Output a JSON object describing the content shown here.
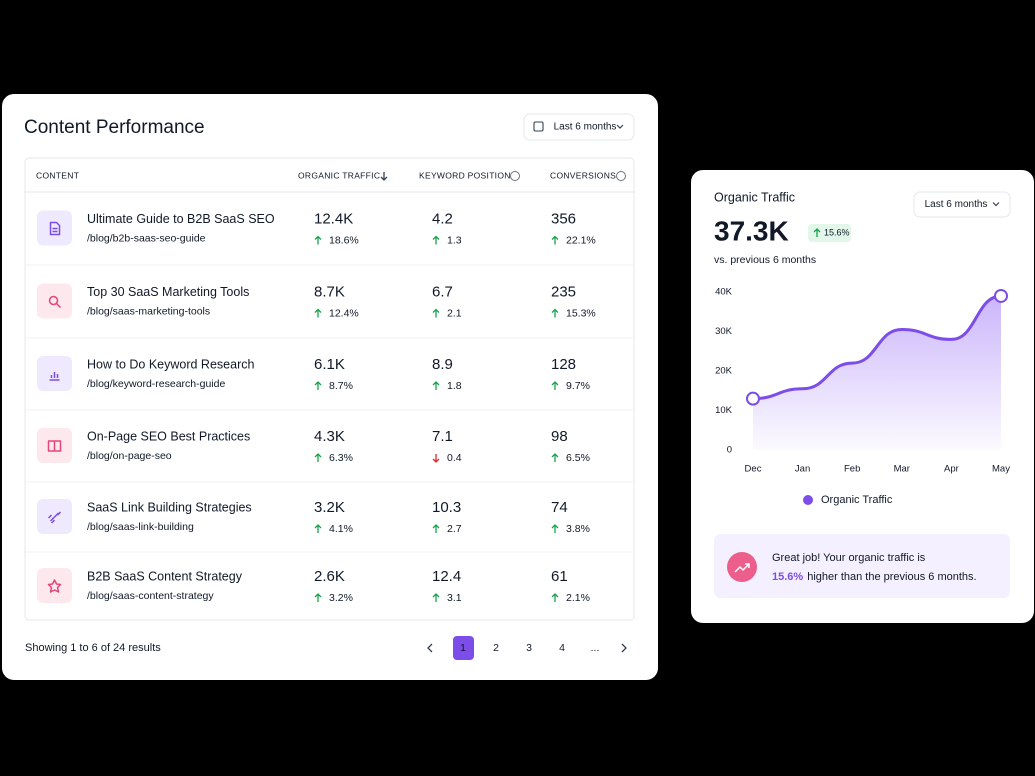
{
  "table_card": {
    "title": "Content Performance",
    "date_filter": "Last 6 months",
    "columns": [
      "CONTENT",
      "ORGANIC TRAFFIC",
      "KEYWORD POSITION",
      "CONVERSIONS"
    ],
    "rows": [
      {
        "title": "Ultimate Guide to B2B SaaS SEO",
        "url": "/blog/b2b-saas-seo-guide",
        "metrics": [
          {
            "value": "12.4K",
            "change": "18.6%",
            "direction": "up"
          },
          {
            "value": "4.2",
            "change": "1.3",
            "direction": "up"
          },
          {
            "value": "356",
            "change": "22.1%",
            "direction": "up"
          }
        ]
      },
      {
        "title": "Top 30 SaaS Marketing Tools",
        "url": "/blog/saas-marketing-tools",
        "metrics": [
          {
            "value": "8.7K",
            "change": "12.4%",
            "direction": "up"
          },
          {
            "value": "6.7",
            "change": "2.1",
            "direction": "up"
          },
          {
            "value": "235",
            "change": "15.3%",
            "direction": "up"
          }
        ]
      },
      {
        "title": "How to Do Keyword Research",
        "url": "/blog/keyword-research-guide",
        "metrics": [
          {
            "value": "6.1K",
            "change": "8.7%",
            "direction": "up"
          },
          {
            "value": "8.9",
            "change": "1.8",
            "direction": "up"
          },
          {
            "value": "128",
            "change": "9.7%",
            "direction": "up"
          }
        ]
      },
      {
        "title": "On-Page SEO Best Practices",
        "url": "/blog/on-page-seo",
        "metrics": [
          {
            "value": "4.3K",
            "change": "6.3%",
            "direction": "up"
          },
          {
            "value": "7.1",
            "change": "0.4",
            "direction": "down"
          },
          {
            "value": "98",
            "change": "6.5%",
            "direction": "up"
          }
        ]
      },
      {
        "title": "SaaS Link Building Strategies",
        "url": "/blog/saas-link-building",
        "metrics": [
          {
            "value": "3.2K",
            "change": "4.1%",
            "direction": "up"
          },
          {
            "value": "10.3",
            "change": "2.7",
            "direction": "up"
          },
          {
            "value": "74",
            "change": "3.8%",
            "direction": "up"
          }
        ]
      },
      {
        "title": "B2B SaaS Content Strategy",
        "url": "/blog/saas-content-strategy",
        "metrics": [
          {
            "value": "2.6K",
            "change": "3.2%",
            "direction": "up"
          },
          {
            "value": "12.4",
            "change": "3.1",
            "direction": "up"
          },
          {
            "value": "61",
            "change": "2.1%",
            "direction": "up"
          }
        ]
      }
    ],
    "footer": "Showing 1 to 6 of 24 results",
    "pages": [
      "1",
      "2",
      "3",
      "4",
      "..."
    ]
  },
  "chart_card": {
    "title": "Organic Traffic",
    "date_filter": "Last 6 months",
    "total": "37.3K",
    "change": "15.6%",
    "comparison": "vs. previous 6 months",
    "chart": {
      "type": "line",
      "categories": [
        "Dec",
        "Jan",
        "Feb",
        "Mar",
        "Apr",
        "May"
      ],
      "series": [
        {
          "name": "Organic Traffic",
          "color": "#7c4de8",
          "values": [
            13000,
            15500,
            22000,
            30500,
            28000,
            39000
          ]
        }
      ],
      "ylim": [
        0,
        40000
      ],
      "yticks": [
        0,
        {
          "value": 10000,
          "label": "10K"
        },
        {
          "value": 20000,
          "label": "20K"
        },
        {
          "value": 30000,
          "label": "30K"
        },
        {
          "value": 40000,
          "label": "40K"
        }
      ]
    },
    "callout": {
      "line1": "Great job! Your organic traffic is",
      "highlight": "15.6%",
      "line2": "higher than the previous 6 months."
    }
  }
}
